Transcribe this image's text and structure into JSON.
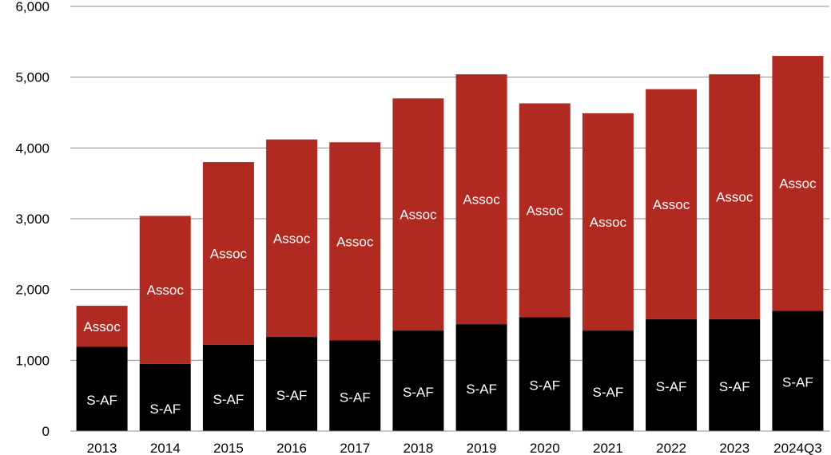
{
  "chart_data": {
    "type": "bar",
    "stacked": true,
    "title": "",
    "xlabel": "",
    "ylabel": "",
    "ylim": [
      0,
      6000
    ],
    "yticks": [
      0,
      1000,
      2000,
      3000,
      4000,
      5000,
      6000
    ],
    "ytick_labels": [
      "0",
      "1,000",
      "2,000",
      "3,000",
      "4,000",
      "5,000",
      "6,000"
    ],
    "grid": true,
    "legend": "none",
    "categories": [
      "2013",
      "2014",
      "2015",
      "2016",
      "2017",
      "2018",
      "2019",
      "2020",
      "2021",
      "2022",
      "2023",
      "2024Q3"
    ],
    "series": [
      {
        "label": "S-AF",
        "color": "#000000",
        "values": [
          1190,
          950,
          1220,
          1330,
          1280,
          1420,
          1510,
          1610,
          1420,
          1580,
          1580,
          1700
        ]
      },
      {
        "label": "Assoc",
        "color": "#b02a22",
        "values": [
          580,
          2090,
          2580,
          2790,
          2800,
          3280,
          3530,
          3020,
          3070,
          3250,
          3460,
          3600
        ]
      }
    ]
  }
}
